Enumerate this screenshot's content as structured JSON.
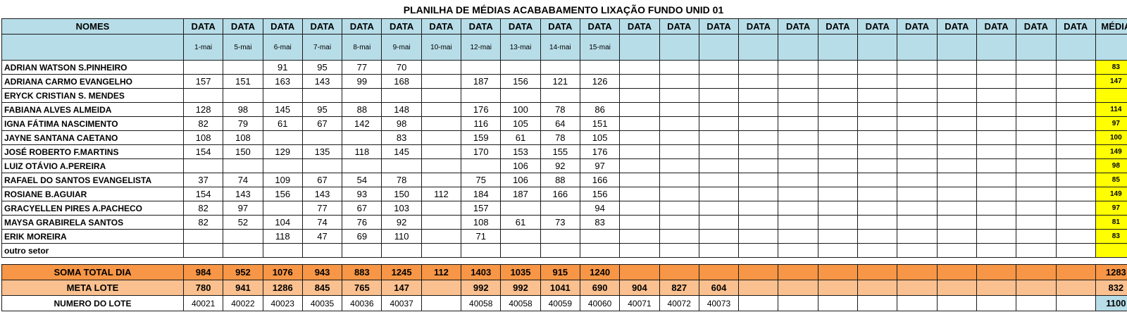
{
  "title": "PLANILHA DE MÉDIAS ACABABAMENTO LIXAÇÃO FUNDO UNID 01",
  "header": {
    "names_label": "NOMES",
    "data_label": "DATA",
    "media_label": "MÉDIA",
    "dates": [
      "1-mai",
      "5-mai",
      "6-mai",
      "7-mai",
      "8-mai",
      "9-mai",
      "10-mai",
      "12-mai",
      "13-mai",
      "14-mai",
      "15-mai",
      "",
      "",
      "",
      "",
      "",
      "",
      "",
      "",
      "",
      "",
      "",
      ""
    ]
  },
  "rows": [
    {
      "name": "ADRIAN WATSON S.PINHEIRO",
      "values": [
        "",
        "",
        "91",
        "95",
        "77",
        "70",
        "",
        "",
        "",
        "",
        "",
        "",
        "",
        "",
        "",
        "",
        "",
        "",
        "",
        "",
        "",
        "",
        ""
      ],
      "media": "83"
    },
    {
      "name": "ADRIANA CARMO EVANGELHO",
      "values": [
        "157",
        "151",
        "163",
        "143",
        "99",
        "168",
        "",
        "187",
        "156",
        "121",
        "126",
        "",
        "",
        "",
        "",
        "",
        "",
        "",
        "",
        "",
        "",
        "",
        ""
      ],
      "media": "147"
    },
    {
      "name": "ERYCK CRISTIAN S. MENDES",
      "values": [
        "",
        "",
        "",
        "",
        "",
        "",
        "",
        "",
        "",
        "",
        "",
        "",
        "",
        "",
        "",
        "",
        "",
        "",
        "",
        "",
        "",
        "",
        ""
      ],
      "media": ""
    },
    {
      "name": "FABIANA ALVES ALMEIDA",
      "values": [
        "128",
        "98",
        "145",
        "95",
        "88",
        "148",
        "",
        "176",
        "100",
        "78",
        "86",
        "",
        "",
        "",
        "",
        "",
        "",
        "",
        "",
        "",
        "",
        "",
        ""
      ],
      "media": "114"
    },
    {
      "name": "IGNA FÁTIMA NASCIMENTO",
      "values": [
        "82",
        "79",
        "61",
        "67",
        "142",
        "98",
        "",
        "116",
        "105",
        "64",
        "151",
        "",
        "",
        "",
        "",
        "",
        "",
        "",
        "",
        "",
        "",
        "",
        ""
      ],
      "media": "97"
    },
    {
      "name": "JAYNE SANTANA CAETANO",
      "values": [
        "108",
        "108",
        "",
        "",
        "",
        "83",
        "",
        "159",
        "61",
        "78",
        "105",
        "",
        "",
        "",
        "",
        "",
        "",
        "",
        "",
        "",
        "",
        "",
        ""
      ],
      "media": "100"
    },
    {
      "name": "JOSÉ ROBERTO F.MARTINS",
      "values": [
        "154",
        "150",
        "129",
        "135",
        "118",
        "145",
        "",
        "170",
        "153",
        "155",
        "176",
        "",
        "",
        "",
        "",
        "",
        "",
        "",
        "",
        "",
        "",
        "",
        ""
      ],
      "media": "149"
    },
    {
      "name": "LUIZ OTÁVIO A.PEREIRA",
      "values": [
        "",
        "",
        "",
        "",
        "",
        "",
        "",
        "",
        "106",
        "92",
        "97",
        "",
        "",
        "",
        "",
        "",
        "",
        "",
        "",
        "",
        "",
        "",
        ""
      ],
      "media": "98"
    },
    {
      "name": "RAFAEL DO SANTOS EVANGELISTA",
      "values": [
        "37",
        "74",
        "109",
        "67",
        "54",
        "78",
        "",
        "75",
        "106",
        "88",
        "166",
        "",
        "",
        "",
        "",
        "",
        "",
        "",
        "",
        "",
        "",
        "",
        ""
      ],
      "media": "85"
    },
    {
      "name": "ROSIANE B.AGUIAR",
      "values": [
        "154",
        "143",
        "156",
        "143",
        "93",
        "150",
        "112",
        "184",
        "187",
        "166",
        "156",
        "",
        "",
        "",
        "",
        "",
        "",
        "",
        "",
        "",
        "",
        "",
        ""
      ],
      "media": "149"
    },
    {
      "name": "GRACYELLEN PIRES A.PACHECO",
      "values": [
        "82",
        "97",
        "",
        "77",
        "67",
        "103",
        "",
        "157",
        "",
        "",
        "94",
        "",
        "",
        "",
        "",
        "",
        "",
        "",
        "",
        "",
        "",
        "",
        ""
      ],
      "media": "97"
    },
    {
      "name": "MAYSA GRABIRELA SANTOS",
      "values": [
        "82",
        "52",
        "104",
        "74",
        "76",
        "92",
        "",
        "108",
        "61",
        "73",
        "83",
        "",
        "",
        "",
        "",
        "",
        "",
        "",
        "",
        "",
        "",
        "",
        ""
      ],
      "media": "81"
    },
    {
      "name": "ERIK MOREIRA",
      "values": [
        "",
        "",
        "118",
        "47",
        "69",
        "110",
        "",
        "71",
        "",
        "",
        "",
        "",
        "",
        "",
        "",
        "",
        "",
        "",
        "",
        "",
        "",
        "",
        ""
      ],
      "media": "83"
    },
    {
      "name": "outro setor",
      "values": [
        "",
        "",
        "",
        "",
        "",
        "",
        "",
        "",
        "",
        "",
        "",
        "",
        "",
        "",
        "",
        "",
        "",
        "",
        "",
        "",
        "",
        "",
        ""
      ],
      "media": ""
    }
  ],
  "soma": {
    "label": "SOMA TOTAL DIA",
    "values": [
      "984",
      "952",
      "1076",
      "943",
      "883",
      "1245",
      "112",
      "1403",
      "1035",
      "915",
      "1240",
      "",
      "",
      "",
      "",
      "",
      "",
      "",
      "",
      "",
      "",
      "",
      ""
    ],
    "media": "1283"
  },
  "meta": {
    "label": "META LOTE",
    "values": [
      "780",
      "941",
      "1286",
      "845",
      "765",
      "147",
      "",
      "992",
      "992",
      "1041",
      "690",
      "904",
      "827",
      "604",
      "",
      "",
      "",
      "",
      "",
      "",
      "",
      "",
      ""
    ],
    "media": "832"
  },
  "lote": {
    "label": "NUMERO DO LOTE",
    "values": [
      "40021",
      "40022",
      "40023",
      "40035",
      "40036",
      "40037",
      "",
      "40058",
      "40058",
      "40059",
      "40060",
      "40071",
      "40072",
      "40073",
      "",
      "",
      "",
      "",
      "",
      "",
      "",
      "",
      ""
    ],
    "media": "1100"
  }
}
